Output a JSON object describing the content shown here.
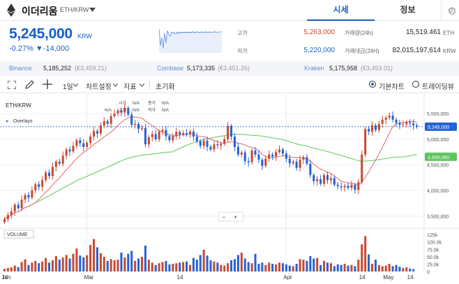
{
  "header": {
    "coin_name": "이더리움",
    "pair": "ETH/KRW",
    "tab_price": "시세",
    "tab_info": "정보"
  },
  "summary": {
    "price": "5,245,000",
    "unit": "KRW",
    "change": "-0.27% ▼-14,000",
    "high_label": "고가",
    "high_value": "5,263,000",
    "low_label": "저가",
    "low_value": "5,220,000",
    "volume_label": "거래량(24h)",
    "volume_value": "15,519.461",
    "volume_unit": "ETH",
    "amount_label": "거래대금(24H)",
    "amount_value": "82,015,197,614",
    "amount_unit": "KRW"
  },
  "exchanges": [
    {
      "name": "Binance",
      "price": "5,185,252",
      "sub": "(€3,459.21)"
    },
    {
      "name": "Coinbase",
      "price": "5,173,335",
      "sub": "(€3,451.26)"
    },
    {
      "name": "Kraken",
      "price": "5,175,958",
      "sub": "(€3,453.01)"
    }
  ],
  "toolbar": {
    "interval": "1일",
    "chart_settings": "차트설정",
    "indicators": "지표",
    "reset": "초기화",
    "basic_chart": "기본차트",
    "tradingview": "트레이딩뷰"
  },
  "chart_data": {
    "type": "candlestick",
    "symbol": "ETH/KRW",
    "overlays_label": "Overlays",
    "ohlc_labels": [
      "시가",
      "N/A",
      "종가",
      "N/A",
      "고가",
      "N/A",
      "저가",
      "N/A"
    ],
    "ohlc_prefix": [
      "N/A",
      "N/A",
      "N/A"
    ],
    "volume_label": "VOLUME",
    "price_ticks": [
      "5,500,000",
      "5,000,000",
      "4,500,000",
      "4,000,000",
      "3,500,000"
    ],
    "price_tick_values": [
      5500000,
      5000000,
      4500000,
      4000000,
      3500000
    ],
    "volume_ticks": [
      "125k",
      "100.0k",
      "75.0k",
      "50.0k",
      "25.0k",
      "0"
    ],
    "volume_tick_values": [
      125000,
      100000,
      75000,
      50000,
      25000,
      0
    ],
    "x_labels": [
      "14",
      "Mar",
      "14",
      "Apr",
      "14",
      "May",
      "14",
      "Jun"
    ],
    "current_price": 5245000,
    "current_price_label": "5,245,000",
    "ma_long_label": "4,656,060",
    "ma_long_value": 4656060,
    "y_range": [
      3300000,
      5720000
    ],
    "vol_range": [
      0,
      130000
    ],
    "up_color": "#c84a31",
    "down_color": "#2563d6",
    "ma_short_color": "#e06666",
    "ma_long_color": "#5cc45c",
    "closes": [
      3440000,
      3520000,
      3590000,
      3720000,
      3650000,
      3820000,
      3910000,
      3860000,
      4000000,
      4120000,
      4070000,
      4200000,
      4350000,
      4280000,
      4460000,
      4560000,
      4520000,
      4680000,
      4800000,
      4760000,
      4870000,
      4980000,
      4920000,
      4850000,
      4930000,
      5050000,
      5160000,
      5110000,
      5270000,
      5350000,
      5300000,
      5450000,
      5500000,
      5560000,
      5520000,
      5610000,
      5480000,
      5280000,
      5300000,
      5200000,
      5220000,
      4900000,
      5040000,
      5100000,
      5000000,
      5150000,
      5180000,
      5060000,
      4980000,
      5060000,
      5140000,
      5090000,
      5120000,
      5100000,
      5150000,
      5050000,
      4960000,
      4870000,
      4970000,
      4850000,
      4800000,
      4900000,
      4880000,
      4910000,
      5000000,
      5260000,
      5050000,
      4850000,
      4700000,
      4740000,
      4570000,
      4550000,
      4780000,
      4700000,
      4600000,
      4480000,
      4620000,
      4700000,
      4660000,
      4750000,
      4800000,
      4720000,
      4620000,
      4530000,
      4560000,
      4440000,
      4600000,
      4650000,
      4520000,
      4300000,
      4180000,
      4220000,
      4130000,
      4300000,
      4200000,
      4240000,
      4110000,
      4080000,
      4060000,
      4090000,
      4050000,
      4110000,
      4010000,
      4160000,
      4700000,
      5200000,
      5150000,
      5270000,
      5180000,
      5300000,
      5380000,
      5420000,
      5460000,
      5380000,
      5320000,
      5280000,
      5290000,
      5330000,
      5310000,
      5270000,
      5245000
    ],
    "opens": [
      3380000,
      3440000,
      3520000,
      3590000,
      3720000,
      3650000,
      3820000,
      3910000,
      3860000,
      4000000,
      4120000,
      4070000,
      4200000,
      4350000,
      4280000,
      4460000,
      4560000,
      4520000,
      4680000,
      4800000,
      4760000,
      4870000,
      4980000,
      4920000,
      4850000,
      4930000,
      5050000,
      5160000,
      5110000,
      5270000,
      5350000,
      5300000,
      5450000,
      5500000,
      5560000,
      5520000,
      5610000,
      5480000,
      5280000,
      5300000,
      5200000,
      5220000,
      4900000,
      5040000,
      5100000,
      5000000,
      5150000,
      5180000,
      5060000,
      4980000,
      5060000,
      5140000,
      5090000,
      5120000,
      5100000,
      5150000,
      5050000,
      4960000,
      4870000,
      4970000,
      4850000,
      4800000,
      4900000,
      4880000,
      4910000,
      5000000,
      5260000,
      5050000,
      4850000,
      4700000,
      4740000,
      4570000,
      4550000,
      4780000,
      4700000,
      4600000,
      4480000,
      4620000,
      4700000,
      4660000,
      4750000,
      4800000,
      4720000,
      4620000,
      4530000,
      4560000,
      4440000,
      4600000,
      4650000,
      4520000,
      4300000,
      4180000,
      4220000,
      4130000,
      4300000,
      4200000,
      4240000,
      4110000,
      4080000,
      4060000,
      4090000,
      4050000,
      4110000,
      4010000,
      4160000,
      4700000,
      5200000,
      5150000,
      5270000,
      5180000,
      5300000,
      5380000,
      5420000,
      5460000,
      5380000,
      5320000,
      5280000,
      5290000,
      5330000,
      5310000,
      5270000
    ],
    "volumes": [
      9000,
      12000,
      14000,
      20000,
      15000,
      32000,
      41000,
      22000,
      30000,
      36000,
      28000,
      34000,
      46000,
      30000,
      38000,
      52000,
      40000,
      47000,
      56000,
      44000,
      60000,
      78000,
      54000,
      48000,
      55000,
      90000,
      110000,
      82000,
      62000,
      50000,
      36000,
      42000,
      38000,
      40000,
      64000,
      48000,
      60000,
      70000,
      36000,
      44000,
      50000,
      88000,
      40000,
      30000,
      22000,
      28000,
      32000,
      36000,
      24000,
      26000,
      28000,
      30000,
      32000,
      34000,
      22000,
      46000,
      40000,
      56000,
      74000,
      54000,
      38000,
      34000,
      30000,
      22000,
      20000,
      28000,
      38000,
      42000,
      56000,
      64000,
      44000,
      32000,
      28000,
      60000,
      26000,
      30000,
      22000,
      30000,
      26000,
      24000,
      30000,
      28000,
      24000,
      20000,
      18000,
      26000,
      42000,
      40000,
      36000,
      52000,
      44000,
      46000,
      22000,
      36000,
      30000,
      28000,
      18000,
      24000,
      22000,
      26000,
      20000,
      22000,
      18000,
      40000,
      92000,
      120000,
      58000,
      26000,
      40000,
      22000,
      18000,
      20000,
      26000,
      18000,
      22000,
      16000,
      12000,
      14000,
      10000,
      8000
    ]
  }
}
